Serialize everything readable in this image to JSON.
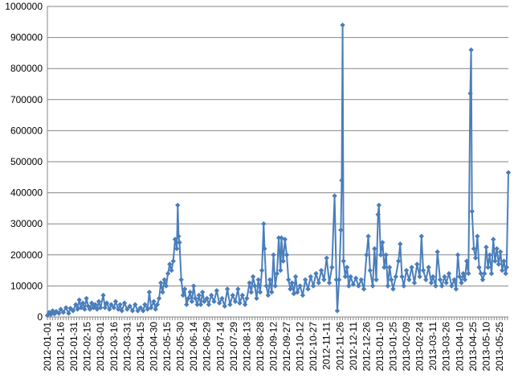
{
  "chart_data": {
    "type": "line",
    "title": "",
    "xlabel": "",
    "ylabel": "",
    "ylim": [
      0,
      1000000
    ],
    "y_ticks": [
      0,
      100000,
      200000,
      300000,
      400000,
      500000,
      600000,
      700000,
      800000,
      900000,
      1000000
    ],
    "y_tick_labels": [
      "0",
      "100000",
      "200000",
      "300000",
      "400000",
      "500000",
      "600000",
      "700000",
      "800000",
      "900000",
      "1000000"
    ],
    "grid": "horizontal",
    "legend": "none",
    "marker": "diamond",
    "series_color": "#4a7ebb",
    "gridline_color": "#868686",
    "x_start": "2012-01-01",
    "x_end": "2013-06-04",
    "x_tick_labels": [
      "2012-01-01",
      "2012-01-16",
      "2012-01-31",
      "2012-02-15",
      "2012-03-01",
      "2012-03-16",
      "2012-03-31",
      "2012-04-15",
      "2012-04-30",
      "2012-05-15",
      "2012-05-30",
      "2012-06-14",
      "2012-06-29",
      "2012-07-14",
      "2012-07-29",
      "2012-08-13",
      "2012-08-28",
      "2012-09-12",
      "2012-09-27",
      "2012-10-12",
      "2012-10-27",
      "2012-11-11",
      "2012-11-26",
      "2012-12-11",
      "2012-12-26",
      "2013-01-10",
      "2013-01-25",
      "2013-02-09",
      "2013-02-24",
      "2013-03-11",
      "2013-03-26",
      "2013-04-10",
      "2013-04-25",
      "2013-05-10",
      "2013-05-25"
    ],
    "series": [
      {
        "points": [
          [
            "2012-01-01",
            5000
          ],
          [
            "2012-01-03",
            15000
          ],
          [
            "2012-01-05",
            8000
          ],
          [
            "2012-01-07",
            20000
          ],
          [
            "2012-01-09",
            10000
          ],
          [
            "2012-01-11",
            18000
          ],
          [
            "2012-01-14",
            12000
          ],
          [
            "2012-01-16",
            25000
          ],
          [
            "2012-01-19",
            15000
          ],
          [
            "2012-01-22",
            30000
          ],
          [
            "2012-01-25",
            12000
          ],
          [
            "2012-01-27",
            28000
          ],
          [
            "2012-01-30",
            20000
          ],
          [
            "2012-02-02",
            40000
          ],
          [
            "2012-02-04",
            25000
          ],
          [
            "2012-02-06",
            55000
          ],
          [
            "2012-02-08",
            30000
          ],
          [
            "2012-02-10",
            45000
          ],
          [
            "2012-02-12",
            25000
          ],
          [
            "2012-02-14",
            60000
          ],
          [
            "2012-02-16",
            35000
          ],
          [
            "2012-02-18",
            25000
          ],
          [
            "2012-02-20",
            45000
          ],
          [
            "2012-02-22",
            30000
          ],
          [
            "2012-02-24",
            40000
          ],
          [
            "2012-02-26",
            25000
          ],
          [
            "2012-02-28",
            50000
          ],
          [
            "2012-03-01",
            30000
          ],
          [
            "2012-03-04",
            70000
          ],
          [
            "2012-03-06",
            30000
          ],
          [
            "2012-03-08",
            45000
          ],
          [
            "2012-03-11",
            25000
          ],
          [
            "2012-03-13",
            40000
          ],
          [
            "2012-03-16",
            30000
          ],
          [
            "2012-03-18",
            50000
          ],
          [
            "2012-03-21",
            25000
          ],
          [
            "2012-03-23",
            40000
          ],
          [
            "2012-03-25",
            20000
          ],
          [
            "2012-03-28",
            45000
          ],
          [
            "2012-03-31",
            25000
          ],
          [
            "2012-04-03",
            35000
          ],
          [
            "2012-04-06",
            20000
          ],
          [
            "2012-04-09",
            40000
          ],
          [
            "2012-04-12",
            20000
          ],
          [
            "2012-04-15",
            30000
          ],
          [
            "2012-04-18",
            20000
          ],
          [
            "2012-04-20",
            40000
          ],
          [
            "2012-04-23",
            25000
          ],
          [
            "2012-04-25",
            80000
          ],
          [
            "2012-04-27",
            30000
          ],
          [
            "2012-04-30",
            50000
          ],
          [
            "2012-05-02",
            25000
          ],
          [
            "2012-05-04",
            40000
          ],
          [
            "2012-05-06",
            60000
          ],
          [
            "2012-05-08",
            110000
          ],
          [
            "2012-05-10",
            80000
          ],
          [
            "2012-05-12",
            120000
          ],
          [
            "2012-05-14",
            100000
          ],
          [
            "2012-05-16",
            140000
          ],
          [
            "2012-05-18",
            170000
          ],
          [
            "2012-05-20",
            150000
          ],
          [
            "2012-05-22",
            180000
          ],
          [
            "2012-05-24",
            250000
          ],
          [
            "2012-05-26",
            220000
          ],
          [
            "2012-05-27",
            360000
          ],
          [
            "2012-05-28",
            260000
          ],
          [
            "2012-05-29",
            240000
          ],
          [
            "2012-05-31",
            120000
          ],
          [
            "2012-06-02",
            70000
          ],
          [
            "2012-06-04",
            90000
          ],
          [
            "2012-06-06",
            40000
          ],
          [
            "2012-06-08",
            60000
          ],
          [
            "2012-06-10",
            80000
          ],
          [
            "2012-06-12",
            50000
          ],
          [
            "2012-06-14",
            100000
          ],
          [
            "2012-06-16",
            60000
          ],
          [
            "2012-06-18",
            40000
          ],
          [
            "2012-06-20",
            70000
          ],
          [
            "2012-06-22",
            40000
          ],
          [
            "2012-06-24",
            80000
          ],
          [
            "2012-06-26",
            50000
          ],
          [
            "2012-06-29",
            60000
          ],
          [
            "2012-07-01",
            40000
          ],
          [
            "2012-07-04",
            70000
          ],
          [
            "2012-07-07",
            50000
          ],
          [
            "2012-07-10",
            85000
          ],
          [
            "2012-07-13",
            45000
          ],
          [
            "2012-07-16",
            60000
          ],
          [
            "2012-07-19",
            35000
          ],
          [
            "2012-07-22",
            90000
          ],
          [
            "2012-07-25",
            40000
          ],
          [
            "2012-07-28",
            70000
          ],
          [
            "2012-07-31",
            50000
          ],
          [
            "2012-08-03",
            90000
          ],
          [
            "2012-08-05",
            45000
          ],
          [
            "2012-08-08",
            70000
          ],
          [
            "2012-08-11",
            40000
          ],
          [
            "2012-08-13",
            60000
          ],
          [
            "2012-08-16",
            110000
          ],
          [
            "2012-08-18",
            80000
          ],
          [
            "2012-08-20",
            130000
          ],
          [
            "2012-08-22",
            100000
          ],
          [
            "2012-08-24",
            60000
          ],
          [
            "2012-08-26",
            120000
          ],
          [
            "2012-08-28",
            80000
          ],
          [
            "2012-08-30",
            150000
          ],
          [
            "2012-09-01",
            300000
          ],
          [
            "2012-09-02",
            220000
          ],
          [
            "2012-09-04",
            100000
          ],
          [
            "2012-09-06",
            70000
          ],
          [
            "2012-09-08",
            120000
          ],
          [
            "2012-09-10",
            80000
          ],
          [
            "2012-09-12",
            200000
          ],
          [
            "2012-09-14",
            100000
          ],
          [
            "2012-09-16",
            140000
          ],
          [
            "2012-09-18",
            255000
          ],
          [
            "2012-09-20",
            150000
          ],
          [
            "2012-09-21",
            255000
          ],
          [
            "2012-09-23",
            180000
          ],
          [
            "2012-09-25",
            250000
          ],
          [
            "2012-09-27",
            200000
          ],
          [
            "2012-09-29",
            120000
          ],
          [
            "2012-10-01",
            90000
          ],
          [
            "2012-10-03",
            110000
          ],
          [
            "2012-10-05",
            75000
          ],
          [
            "2012-10-07",
            130000
          ],
          [
            "2012-10-09",
            80000
          ],
          [
            "2012-10-12",
            100000
          ],
          [
            "2012-10-15",
            70000
          ],
          [
            "2012-10-18",
            120000
          ],
          [
            "2012-10-21",
            90000
          ],
          [
            "2012-10-24",
            130000
          ],
          [
            "2012-10-27",
            100000
          ],
          [
            "2012-10-30",
            140000
          ],
          [
            "2012-11-02",
            110000
          ],
          [
            "2012-11-05",
            150000
          ],
          [
            "2012-11-08",
            120000
          ],
          [
            "2012-11-11",
            190000
          ],
          [
            "2012-11-14",
            110000
          ],
          [
            "2012-11-17",
            160000
          ],
          [
            "2012-11-20",
            390000
          ],
          [
            "2012-11-22",
            120000
          ],
          [
            "2012-11-23",
            20000
          ],
          [
            "2012-11-25",
            120000
          ],
          [
            "2012-11-27",
            280000
          ],
          [
            "2012-11-28",
            440000
          ],
          [
            "2012-11-29",
            940000
          ],
          [
            "2012-11-30",
            180000
          ],
          [
            "2012-12-02",
            130000
          ],
          [
            "2012-12-04",
            160000
          ],
          [
            "2012-12-06",
            100000
          ],
          [
            "2012-12-08",
            130000
          ],
          [
            "2012-12-11",
            105000
          ],
          [
            "2012-12-14",
            125000
          ],
          [
            "2012-12-17",
            100000
          ],
          [
            "2012-12-20",
            120000
          ],
          [
            "2012-12-23",
            90000
          ],
          [
            "2012-12-26",
            200000
          ],
          [
            "2012-12-28",
            260000
          ],
          [
            "2012-12-30",
            150000
          ],
          [
            "2013-01-02",
            100000
          ],
          [
            "2013-01-04",
            220000
          ],
          [
            "2013-01-06",
            120000
          ],
          [
            "2013-01-08",
            330000
          ],
          [
            "2013-01-09",
            360000
          ],
          [
            "2013-01-11",
            200000
          ],
          [
            "2013-01-13",
            240000
          ],
          [
            "2013-01-15",
            160000
          ],
          [
            "2013-01-17",
            200000
          ],
          [
            "2013-01-19",
            100000
          ],
          [
            "2013-01-21",
            160000
          ],
          [
            "2013-01-23",
            120000
          ],
          [
            "2013-01-25",
            90000
          ],
          [
            "2013-01-28",
            130000
          ],
          [
            "2013-01-31",
            180000
          ],
          [
            "2013-02-02",
            235000
          ],
          [
            "2013-02-04",
            130000
          ],
          [
            "2013-02-06",
            100000
          ],
          [
            "2013-02-09",
            150000
          ],
          [
            "2013-02-12",
            120000
          ],
          [
            "2013-02-15",
            160000
          ],
          [
            "2013-02-18",
            110000
          ],
          [
            "2013-02-21",
            170000
          ],
          [
            "2013-02-24",
            130000
          ],
          [
            "2013-02-26",
            260000
          ],
          [
            "2013-02-28",
            150000
          ],
          [
            "2013-03-03",
            120000
          ],
          [
            "2013-03-06",
            160000
          ],
          [
            "2013-03-09",
            110000
          ],
          [
            "2013-03-11",
            130000
          ],
          [
            "2013-03-14",
            100000
          ],
          [
            "2013-03-16",
            210000
          ],
          [
            "2013-03-19",
            120000
          ],
          [
            "2013-03-21",
            100000
          ],
          [
            "2013-03-24",
            130000
          ],
          [
            "2013-03-26",
            110000
          ],
          [
            "2013-03-29",
            140000
          ],
          [
            "2013-04-01",
            100000
          ],
          [
            "2013-04-04",
            120000
          ],
          [
            "2013-04-06",
            90000
          ],
          [
            "2013-04-08",
            200000
          ],
          [
            "2013-04-10",
            130000
          ],
          [
            "2013-04-12",
            110000
          ],
          [
            "2013-04-14",
            140000
          ],
          [
            "2013-04-16",
            120000
          ],
          [
            "2013-04-18",
            180000
          ],
          [
            "2013-04-20",
            140000
          ],
          [
            "2013-04-22",
            720000
          ],
          [
            "2013-04-23",
            860000
          ],
          [
            "2013-04-24",
            340000
          ],
          [
            "2013-04-26",
            220000
          ],
          [
            "2013-04-28",
            190000
          ],
          [
            "2013-04-30",
            260000
          ],
          [
            "2013-05-02",
            160000
          ],
          [
            "2013-05-04",
            140000
          ],
          [
            "2013-05-06",
            120000
          ],
          [
            "2013-05-08",
            140000
          ],
          [
            "2013-05-10",
            225000
          ],
          [
            "2013-05-12",
            160000
          ],
          [
            "2013-05-14",
            200000
          ],
          [
            "2013-05-16",
            140000
          ],
          [
            "2013-05-18",
            250000
          ],
          [
            "2013-05-20",
            180000
          ],
          [
            "2013-05-22",
            220000
          ],
          [
            "2013-05-24",
            170000
          ],
          [
            "2013-05-26",
            210000
          ],
          [
            "2013-05-28",
            150000
          ],
          [
            "2013-05-30",
            180000
          ],
          [
            "2013-06-01",
            140000
          ],
          [
            "2013-06-02",
            160000
          ],
          [
            "2013-06-04",
            465000
          ]
        ]
      }
    ]
  }
}
